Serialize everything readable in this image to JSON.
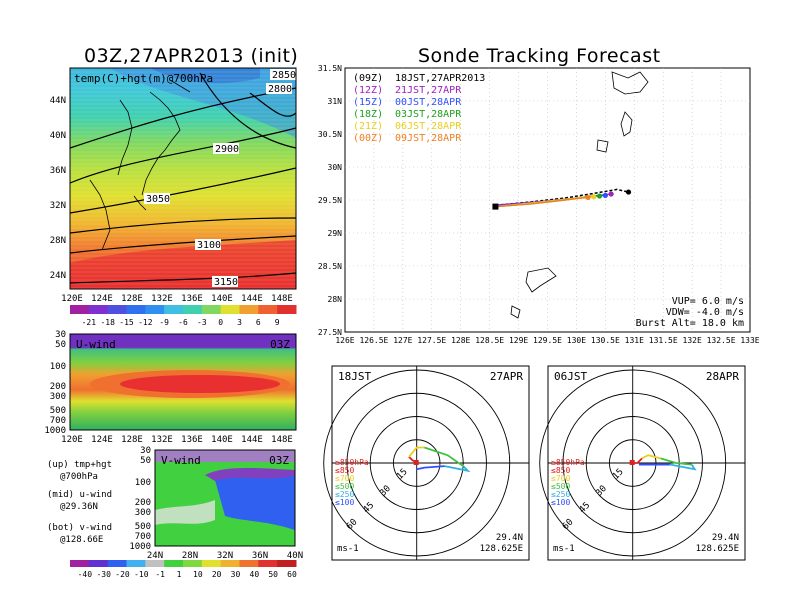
{
  "panels": {
    "map": {
      "title": "03Z,27APR2013 (init)",
      "label": "temp(C)+hgt(m)@700hPa",
      "lat_ticks": [
        "44N",
        "40N",
        "36N",
        "32N",
        "28N",
        "24N"
      ],
      "lon_ticks": [
        "120E",
        "124E",
        "128E",
        "132E",
        "136E",
        "140E",
        "144E",
        "148E"
      ],
      "contour_labels": [
        "2850",
        "2800",
        "2900",
        "3050",
        "3100",
        "3150"
      ],
      "colorbar_labels": [
        "-21",
        "-18",
        "-15",
        "-12",
        "-9",
        "-6",
        "-3",
        "0",
        "3",
        "6",
        "9"
      ]
    },
    "uwind": {
      "label": "U-wind",
      "time": "03Z",
      "p_ticks": [
        "30",
        "50",
        "100",
        "200",
        "300",
        "500",
        "700",
        "1000"
      ],
      "lon_ticks": [
        "120E",
        "124E",
        "128E",
        "132E",
        "136E",
        "140E",
        "144E",
        "148E"
      ]
    },
    "vwind": {
      "label": "V-wind",
      "time": "03Z",
      "p_ticks": [
        "30",
        "50",
        "100",
        "200",
        "300",
        "500",
        "700",
        "1000"
      ],
      "lat_ticks": [
        "24N",
        "28N",
        "32N",
        "36N",
        "40N"
      ]
    },
    "legend_notes": [
      {
        "main": "(up) tmp+hgt",
        "sub": "@700hPa"
      },
      {
        "main": "(mid) u-wind",
        "sub": "@29.36N"
      },
      {
        "main": "(bot) v-wind",
        "sub": "@128.66E"
      }
    ],
    "wind_colorbar_labels": [
      "-40",
      "-30",
      "-20",
      "-10",
      "-1",
      "1",
      "10",
      "20",
      "30",
      "40",
      "50",
      "60"
    ],
    "tracking": {
      "title": "Sonde Tracking Forecast",
      "lat_ticks": [
        "31.5N",
        "31N",
        "30.5N",
        "30N",
        "29.5N",
        "29N",
        "28.5N",
        "28N",
        "27.5N"
      ],
      "lon_ticks": [
        "126E",
        "126.5E",
        "127E",
        "127.5E",
        "128E",
        "128.5E",
        "129E",
        "129.5E",
        "130E",
        "130.5E",
        "131E",
        "131.5E",
        "132E",
        "132.5E",
        "133E"
      ],
      "launches": [
        {
          "utc": "(09Z)",
          "local": "18JST,27APR2013",
          "color": "#000000"
        },
        {
          "utc": "(12Z)",
          "local": "21JST,27APR",
          "color": "#a020c0"
        },
        {
          "utc": "(15Z)",
          "local": "00JST,28APR",
          "color": "#3050ff"
        },
        {
          "utc": "(18Z)",
          "local": "03JST,28APR",
          "color": "#20a020"
        },
        {
          "utc": "(21Z)",
          "local": "06JST,28APR",
          "color": "#e8d020"
        },
        {
          "utc": "(00Z)",
          "local": "09JST,28APR",
          "color": "#f08020"
        }
      ],
      "params": [
        "VUP= 6.0 m/s",
        "VDW= -4.0 m/s",
        "Burst Alt= 18.0 km"
      ]
    },
    "polar_left": {
      "time": "18JST",
      "date": "27APR",
      "rings": [
        "15",
        "30",
        "45",
        "60"
      ],
      "levels": [
        "≥850hPa",
        "≤850",
        "≤700",
        "≤500",
        "≤250",
        "≤100"
      ],
      "lat": "29.4N",
      "lon": "128.625E",
      "unit": "ms-1"
    },
    "polar_right": {
      "time": "06JST",
      "date": "28APR",
      "rings": [
        "15",
        "30",
        "45",
        "60"
      ],
      "levels": [
        "≥850hPa",
        "≤850",
        "≤700",
        "≤500",
        "≤250",
        "≤100"
      ],
      "lat": "29.4N",
      "lon": "128.625E",
      "unit": "ms-1"
    }
  },
  "chart_data": [
    {
      "type": "heatmap",
      "title": "03Z,27APR2013 (init)",
      "subtitle": "temp(C)+hgt(m)@700hPa",
      "x_range": [
        120,
        150
      ],
      "y_range": [
        22,
        47
      ],
      "colorbar": [
        -21,
        -18,
        -15,
        -12,
        -9,
        -6,
        -3,
        0,
        3,
        6,
        9
      ],
      "contours": [
        2800,
        2850,
        2900,
        3050,
        3100,
        3150
      ]
    },
    {
      "type": "heatmap",
      "title": "U-wind",
      "x_range": [
        120,
        150
      ],
      "y_range": [
        1000,
        30
      ],
      "jet_core_level_hPa": 200,
      "jet_core_lon_range": [
        128,
        146
      ]
    },
    {
      "type": "heatmap",
      "title": "V-wind",
      "x_range": [
        24,
        40
      ],
      "y_range": [
        1000,
        30
      ]
    },
    {
      "type": "line",
      "title": "Sonde Tracking Forecast",
      "x_range": [
        126,
        133
      ],
      "y_range": [
        27.5,
        31.5
      ],
      "series": [
        {
          "name": "(09Z) 18JST,27APR2013",
          "x": [
            128.6,
            129.2,
            129.8,
            130.3,
            130.7,
            130.9
          ],
          "y": [
            29.42,
            29.47,
            29.53,
            29.6,
            29.66,
            29.62
          ]
        },
        {
          "name": "(12Z) 21JST,27APR",
          "x": [
            128.6,
            129.3,
            129.9,
            130.4,
            130.6
          ],
          "y": [
            29.42,
            29.47,
            29.52,
            29.57,
            29.59
          ]
        },
        {
          "name": "(15Z) 00JST,28APR",
          "x": [
            128.6,
            129.3,
            129.8,
            130.3,
            130.5
          ],
          "y": [
            29.41,
            29.46,
            29.51,
            29.56,
            29.57
          ]
        },
        {
          "name": "(18Z) 03JST,28APR",
          "x": [
            128.6,
            129.3,
            129.8,
            130.2,
            130.4
          ],
          "y": [
            29.4,
            29.45,
            29.5,
            29.55,
            29.56
          ]
        },
        {
          "name": "(21Z) 06JST,28APR",
          "x": [
            128.6,
            129.2,
            129.7,
            130.1,
            130.3
          ],
          "y": [
            29.4,
            29.45,
            29.5,
            29.54,
            29.55
          ]
        },
        {
          "name": "(00Z) 09JST,28APR",
          "x": [
            128.6,
            129.2,
            129.7,
            130.0,
            130.2
          ],
          "y": [
            29.4,
            29.44,
            29.49,
            29.52,
            29.54
          ]
        }
      ]
    },
    {
      "type": "line",
      "title": "18JST 27APR",
      "rings": [
        15,
        30,
        45,
        60
      ],
      "series": [
        {
          "name": "≤850",
          "u": [
            0,
            -3,
            -5
          ],
          "v": [
            0,
            2,
            4
          ]
        },
        {
          "name": "≤700",
          "u": [
            -5,
            0,
            5
          ],
          "v": [
            4,
            10,
            10
          ]
        },
        {
          "name": "≤500",
          "u": [
            5,
            20,
            30
          ],
          "v": [
            10,
            5,
            -2
          ]
        },
        {
          "name": "≤250",
          "u": [
            30,
            33,
            18
          ],
          "v": [
            -2,
            -5,
            -2
          ]
        },
        {
          "name": "≤100",
          "u": [
            18,
            5,
            0
          ],
          "v": [
            -2,
            -3,
            -4
          ]
        }
      ]
    },
    {
      "type": "line",
      "title": "06JST 28APR",
      "rings": [
        15,
        30,
        45,
        60
      ],
      "series": [
        {
          "name": "≤850",
          "u": [
            0,
            3,
            6
          ],
          "v": [
            0,
            0,
            3
          ]
        },
        {
          "name": "≤700",
          "u": [
            6,
            10,
            18
          ],
          "v": [
            3,
            5,
            3
          ]
        },
        {
          "name": "≤500",
          "u": [
            18,
            28,
            38
          ],
          "v": [
            3,
            0,
            -1
          ]
        },
        {
          "name": "≤250",
          "u": [
            38,
            40,
            24
          ],
          "v": [
            -1,
            -4,
            -1
          ]
        },
        {
          "name": "≤100",
          "u": [
            24,
            12,
            4
          ],
          "v": [
            -1,
            -1,
            -1
          ]
        }
      ]
    }
  ]
}
